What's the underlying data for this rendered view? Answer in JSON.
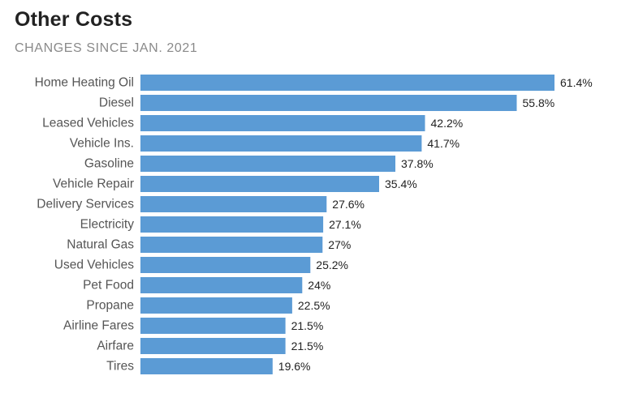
{
  "chart_data": {
    "type": "bar",
    "orientation": "horizontal",
    "title": "Other Costs",
    "subtitle": "CHANGES SINCE JAN. 2021",
    "categories": [
      "Home Heating Oil",
      "Diesel",
      "Leased Vehicles",
      "Vehicle Ins.",
      "Gasoline",
      "Vehicle Repair",
      "Delivery Services",
      "Electricity",
      "Natural Gas",
      "Used Vehicles",
      "Pet Food",
      "Propane",
      "Airline Fares",
      "Airfare",
      "Tires"
    ],
    "values": [
      61.4,
      55.8,
      42.2,
      41.7,
      37.8,
      35.4,
      27.6,
      27.1,
      27,
      25.2,
      24,
      22.5,
      21.5,
      21.5,
      19.6
    ],
    "value_labels": [
      "61.4%",
      "55.8%",
      "42.2%",
      "41.7%",
      "37.8%",
      "35.4%",
      "27.6%",
      "27.1%",
      "27%",
      "25.2%",
      "24%",
      "22.5%",
      "21.5%",
      "21.5%",
      "19.6%"
    ],
    "xlabel": "",
    "ylabel": "",
    "xlim": [
      0,
      61.4
    ],
    "grid": false,
    "legend": "none",
    "bar_color": "#5b9bd5"
  }
}
